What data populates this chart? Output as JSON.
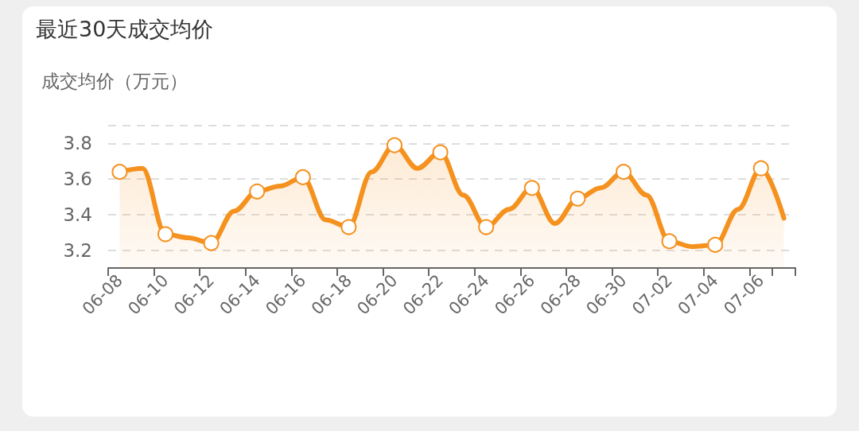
{
  "chart_data": {
    "type": "area",
    "title": "最近30天成交均价",
    "ylabel": "成交均价（万元）",
    "categories": [
      "06-08",
      null,
      "06-10",
      null,
      "06-12",
      null,
      "06-14",
      null,
      "06-16",
      null,
      "06-18",
      null,
      "06-20",
      null,
      "06-22",
      null,
      "06-24",
      null,
      "06-26",
      null,
      "06-28",
      null,
      "06-30",
      null,
      "07-02",
      null,
      "07-04",
      null,
      "07-06",
      null
    ],
    "series": [
      {
        "color": "#f5911e",
        "values": [
          3.64,
          3.66,
          3.29,
          3.27,
          3.24,
          3.42,
          3.53,
          3.56,
          3.61,
          3.37,
          3.33,
          3.64,
          3.79,
          3.66,
          3.75,
          3.51,
          3.33,
          3.43,
          3.55,
          3.35,
          3.49,
          3.55,
          3.64,
          3.51,
          3.25,
          3.22,
          3.23,
          3.43,
          3.66,
          3.38
        ]
      }
    ],
    "ylim": [
      3.1,
      3.9
    ],
    "yticks": [
      3.2,
      3.4,
      3.6,
      3.8,
      {
        "value": 3.9,
        "label": null
      }
    ],
    "grid": "y",
    "marker": "circle"
  }
}
